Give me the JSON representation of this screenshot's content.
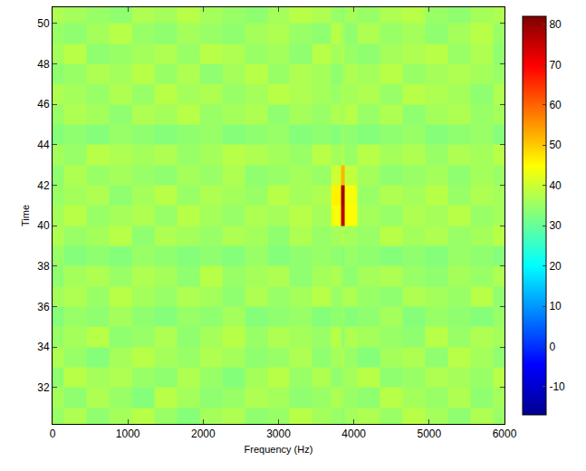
{
  "chart_data": {
    "type": "heatmap",
    "x_label": "Frequency (Hz)",
    "y_label": "Time",
    "xlim": [
      0,
      6000
    ],
    "xticks": [
      0,
      1000,
      2000,
      3000,
      4000,
      5000,
      6000
    ],
    "ylim": [
      30.2,
      50.8
    ],
    "yticks": [
      32,
      34,
      36,
      38,
      40,
      42,
      44,
      46,
      48,
      50
    ],
    "grid": false,
    "x": [
      0,
      300,
      600,
      900,
      1200,
      1500,
      1800,
      2100,
      2400,
      2700,
      3000,
      3300,
      3600,
      3800,
      3850,
      3900,
      4200,
      4500,
      4800,
      5100,
      5400,
      5700,
      6000
    ],
    "y": [
      30.5,
      31.5,
      32.5,
      33.5,
      34.5,
      35.5,
      36.5,
      37.5,
      38.5,
      39.5,
      40.5,
      41.5,
      42.5,
      43.5,
      44.5,
      45.5,
      46.5,
      47.5,
      48.5,
      49.5,
      50.5
    ],
    "z": [
      [
        35,
        37,
        34,
        36,
        38,
        35,
        33,
        36,
        37,
        34,
        35,
        38,
        36,
        35,
        34,
        36,
        37,
        35,
        38,
        36,
        34,
        37,
        35
      ],
      [
        36,
        34,
        37,
        35,
        33,
        38,
        36,
        34,
        35,
        37,
        36,
        34,
        35,
        37,
        36,
        35,
        34,
        38,
        36,
        35,
        37,
        34,
        36
      ],
      [
        34,
        38,
        36,
        37,
        35,
        34,
        37,
        35,
        33,
        36,
        38,
        35,
        37,
        34,
        35,
        36,
        38,
        34,
        35,
        37,
        36,
        35,
        38
      ],
      [
        37,
        35,
        33,
        36,
        38,
        36,
        35,
        37,
        36,
        34,
        35,
        37,
        34,
        36,
        37,
        35,
        33,
        36,
        37,
        34,
        38,
        36,
        34
      ],
      [
        35,
        36,
        38,
        34,
        35,
        37,
        34,
        36,
        38,
        35,
        37,
        36,
        35,
        38,
        34,
        37,
        36,
        35,
        34,
        38,
        35,
        37,
        36
      ],
      [
        33,
        35,
        34,
        36,
        34,
        33,
        35,
        34,
        36,
        33,
        34,
        35,
        33,
        34,
        35,
        33,
        34,
        36,
        33,
        35,
        34,
        33,
        35
      ],
      [
        36,
        37,
        35,
        38,
        36,
        35,
        37,
        36,
        34,
        37,
        35,
        36,
        38,
        35,
        36,
        37,
        35,
        34,
        37,
        36,
        35,
        38,
        34
      ],
      [
        34,
        36,
        37,
        35,
        37,
        36,
        34,
        38,
        35,
        36,
        37,
        34,
        36,
        37,
        35,
        34,
        36,
        37,
        35,
        34,
        36,
        35,
        37
      ],
      [
        35,
        33,
        34,
        33,
        35,
        34,
        33,
        34,
        33,
        35,
        33,
        34,
        35,
        34,
        33,
        35,
        34,
        33,
        34,
        33,
        35,
        34,
        33
      ],
      [
        37,
        35,
        36,
        38,
        34,
        37,
        36,
        35,
        37,
        36,
        34,
        37,
        35,
        36,
        37,
        36,
        35,
        38,
        36,
        37,
        35,
        36,
        38
      ],
      [
        36,
        38,
        35,
        36,
        37,
        35,
        38,
        36,
        35,
        37,
        36,
        38,
        36,
        44,
        76,
        45,
        36,
        35,
        37,
        36,
        38,
        35,
        36
      ],
      [
        35,
        36,
        37,
        34,
        36,
        38,
        35,
        37,
        36,
        35,
        38,
        36,
        37,
        46,
        78,
        44,
        35,
        37,
        36,
        38,
        35,
        37,
        36
      ],
      [
        34,
        37,
        35,
        36,
        35,
        34,
        36,
        35,
        37,
        34,
        35,
        36,
        35,
        40,
        52,
        39,
        36,
        34,
        35,
        36,
        34,
        36,
        35
      ],
      [
        36,
        35,
        38,
        37,
        36,
        37,
        35,
        36,
        38,
        37,
        36,
        35,
        38,
        36,
        37,
        35,
        38,
        36,
        37,
        35,
        37,
        36,
        38
      ],
      [
        33,
        34,
        33,
        35,
        34,
        33,
        34,
        35,
        33,
        34,
        35,
        33,
        34,
        33,
        35,
        34,
        33,
        34,
        35,
        33,
        34,
        35,
        33
      ],
      [
        35,
        37,
        36,
        34,
        37,
        36,
        38,
        35,
        36,
        37,
        34,
        36,
        35,
        37,
        36,
        38,
        35,
        37,
        34,
        36,
        37,
        35,
        36
      ],
      [
        37,
        36,
        35,
        37,
        35,
        38,
        36,
        37,
        35,
        36,
        38,
        37,
        36,
        35,
        37,
        36,
        37,
        35,
        38,
        37,
        36,
        34,
        37
      ],
      [
        34,
        35,
        37,
        36,
        38,
        35,
        37,
        34,
        36,
        38,
        35,
        37,
        36,
        34,
        35,
        37,
        36,
        38,
        35,
        36,
        37,
        36,
        35
      ],
      [
        36,
        38,
        34,
        35,
        36,
        37,
        35,
        38,
        37,
        35,
        36,
        34,
        38,
        36,
        37,
        35,
        34,
        36,
        37,
        38,
        35,
        37,
        34
      ],
      [
        35,
        34,
        36,
        38,
        35,
        34,
        36,
        35,
        34,
        36,
        37,
        35,
        34,
        38,
        36,
        34,
        37,
        35,
        36,
        34,
        36,
        38,
        35
      ],
      [
        37,
        36,
        35,
        34,
        37,
        36,
        38,
        36,
        35,
        34,
        36,
        38,
        37,
        35,
        34,
        36,
        35,
        37,
        38,
        35,
        34,
        36,
        37
      ]
    ],
    "zlim": [
      -17,
      82
    ],
    "zticks": [
      -10,
      0,
      10,
      20,
      30,
      40,
      50,
      60,
      70,
      80
    ]
  }
}
